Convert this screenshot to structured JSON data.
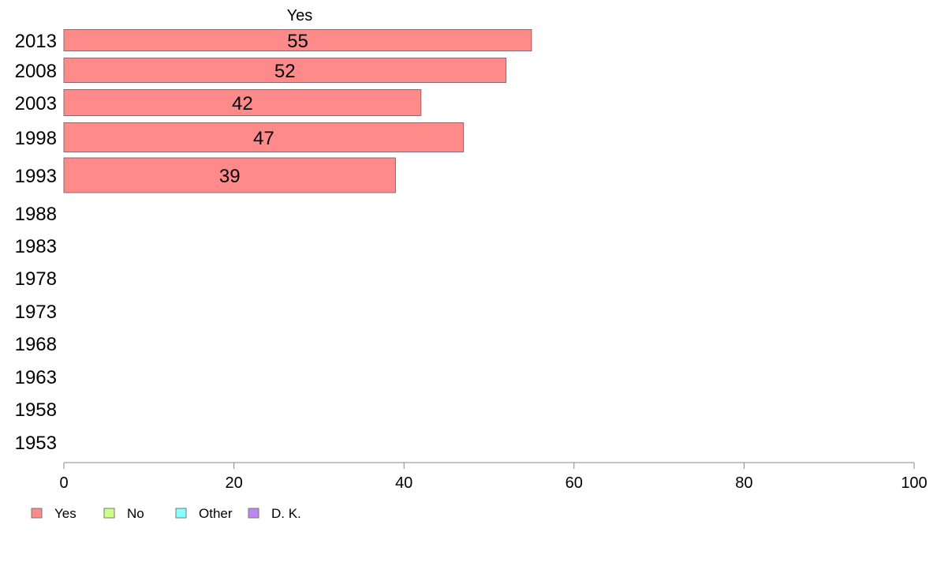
{
  "chart_data": {
    "type": "bar",
    "orientation": "horizontal",
    "title": "Yes",
    "categories": [
      "2013",
      "2008",
      "2003",
      "1998",
      "1993",
      "1988",
      "1983",
      "1978",
      "1973",
      "1968",
      "1963",
      "1958",
      "1953"
    ],
    "series": [
      {
        "name": "Yes",
        "color": "#ff8a8a",
        "values": [
          55,
          52,
          42,
          47,
          39,
          null,
          null,
          null,
          null,
          null,
          null,
          null,
          null
        ],
        "labels": [
          "55",
          "52",
          "42",
          "47",
          "39",
          "",
          "",
          "",
          "",
          "",
          "",
          "",
          ""
        ]
      }
    ],
    "xlim": [
      0,
      100
    ],
    "xticks": [
      "0",
      "20",
      "40",
      "60",
      "80",
      "100"
    ],
    "grid": false,
    "legend": {
      "position": "bottom-left",
      "entries": [
        {
          "label": "Yes",
          "color": "#ff8a8a"
        },
        {
          "label": "No",
          "color": "#ccff88"
        },
        {
          "label": "Other",
          "color": "#88ffff"
        },
        {
          "label": "D. K.",
          "color": "#bb88ee"
        }
      ]
    }
  }
}
